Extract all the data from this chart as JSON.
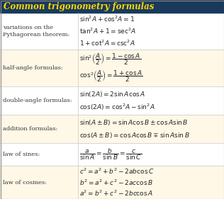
{
  "title": "Common trigonometry formulas",
  "title_bg": "#1a3a5c",
  "title_color": "#FFD700",
  "alt_bg": "#FFF8E7",
  "white_bg": "#FFFFFF",
  "label_color": "#333333",
  "formula_color": "#222222",
  "sections": [
    {
      "label": "variations on the\nPythagorean theorem:",
      "bg": "#FFFFFF",
      "formulas": [
        "$\\sin^2\\!A + \\cos^2\\!A = 1$",
        "$\\tan^2\\!A + 1 = \\sec^2\\!A$",
        "$1 + \\cot^2\\!A = \\csc^2\\!A$"
      ]
    },
    {
      "label": "half-angle formulas:",
      "bg": "#FFF8E7",
      "formulas": [
        "$\\sin^2\\!\\left(\\dfrac{A}{2}\\right) = \\dfrac{1-\\cos A}{2}$",
        "$\\cos^2\\!\\left(\\dfrac{A}{2}\\right) = \\dfrac{1+\\cos A}{2}$"
      ]
    },
    {
      "label": "double-angle formulas:",
      "bg": "#FFFFFF",
      "formulas": [
        "$\\sin(2A) = 2\\sin A \\cos A$",
        "$\\cos(2A) = \\cos^2\\!A - \\sin^2\\!A$"
      ]
    },
    {
      "label": "addition formulas:",
      "bg": "#FFF8E7",
      "formulas": [
        "$\\sin(A \\pm B) = \\sin A\\cos B \\pm \\cos A\\sin B$",
        "$\\cos(A \\pm B) = \\cos A\\cos B \\mp \\sin A\\sin B$"
      ]
    },
    {
      "label": "law of sines:",
      "bg": "#FFFFFF",
      "formulas": [
        "$\\dfrac{a}{\\sin A} = \\dfrac{b}{\\sin B} = \\dfrac{c}{\\sin C}$"
      ]
    },
    {
      "label": "law of cosines:",
      "bg": "#FFF8E7",
      "formulas": [
        "$c^2 = a^2 + b^2 - 2ab\\cos C$",
        "$b^2 = a^2 + c^2 - 2ac\\cos B$",
        "$a^2 = b^2 + c^2 - 2bc\\cos A$"
      ]
    }
  ]
}
